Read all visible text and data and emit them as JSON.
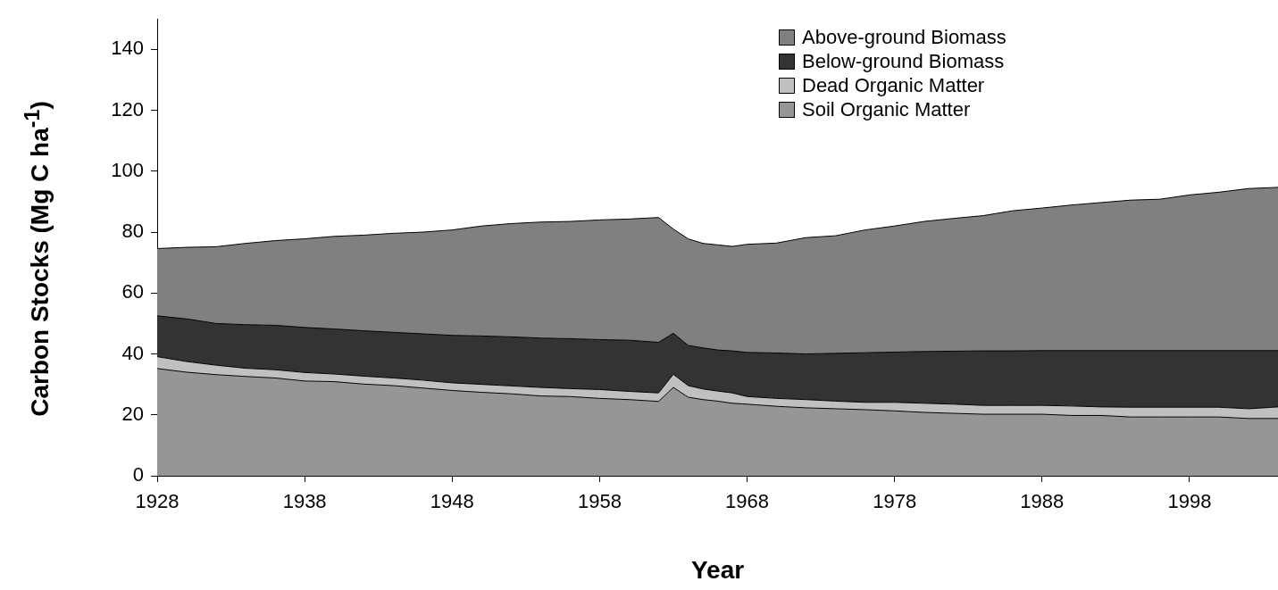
{
  "chart_data": {
    "type": "area",
    "stacked": true,
    "xlabel": "Year",
    "ylabel": "Carbon Stocks (Mg C ha$^{-1}$)",
    "x": [
      1928,
      1930,
      1932,
      1934,
      1936,
      1938,
      1940,
      1942,
      1944,
      1946,
      1948,
      1950,
      1952,
      1954,
      1956,
      1958,
      1960,
      1962,
      1963,
      1964,
      1965,
      1966,
      1967,
      1968,
      1970,
      1972,
      1974,
      1976,
      1978,
      1980,
      1982,
      1984,
      1986,
      1988,
      1990,
      1992,
      1994,
      1996,
      1998,
      2000,
      2002,
      2004
    ],
    "series": [
      {
        "name": "Soil Organic Matter",
        "color": "#969696",
        "values": [
          35.2,
          34.0,
          33.2,
          32.6,
          32.1,
          31.1,
          30.9,
          30.1,
          29.6,
          28.8,
          28.0,
          27.4,
          26.9,
          26.2,
          26.0,
          25.4,
          25.0,
          24.4,
          29.0,
          25.8,
          25.0,
          24.5,
          23.8,
          23.5,
          22.8,
          22.3,
          22.0,
          21.7,
          21.3,
          20.8,
          20.5,
          20.2,
          20.2,
          20.2,
          19.8,
          19.8,
          19.3,
          19.3,
          19.3,
          19.3,
          18.8,
          18.8
        ]
      },
      {
        "name": "Dead Organic Matter",
        "color": "#c0c0c0",
        "values": [
          3.9,
          3.5,
          3.1,
          2.7,
          2.7,
          2.8,
          2.5,
          2.6,
          2.5,
          2.6,
          2.5,
          2.6,
          2.6,
          2.8,
          2.6,
          2.9,
          2.7,
          2.8,
          4.3,
          3.8,
          3.5,
          3.3,
          3.4,
          2.5,
          2.6,
          2.7,
          2.5,
          2.4,
          2.8,
          3.0,
          3.0,
          2.9,
          2.9,
          2.9,
          3.1,
          2.8,
          3.2,
          3.2,
          3.2,
          3.2,
          3.2,
          3.8
        ]
      },
      {
        "name": "Below-ground Biomass",
        "color": "#333333",
        "values": [
          13.4,
          14.0,
          13.7,
          14.3,
          14.6,
          14.8,
          14.8,
          14.9,
          15.0,
          15.2,
          15.6,
          15.9,
          16.1,
          16.2,
          16.4,
          16.4,
          16.8,
          16.6,
          13.5,
          13.2,
          13.5,
          13.5,
          13.8,
          14.5,
          14.9,
          15.0,
          15.7,
          16.3,
          16.5,
          17.0,
          17.4,
          17.9,
          17.9,
          18.0,
          18.2,
          18.5,
          18.6,
          18.6,
          18.6,
          18.6,
          19.1,
          18.5
        ]
      },
      {
        "name": "Above-ground Biomass",
        "color": "#808080",
        "values": [
          22.1,
          23.5,
          25.2,
          26.7,
          27.8,
          29.1,
          30.4,
          31.4,
          32.5,
          33.4,
          34.6,
          36.1,
          37.2,
          38.1,
          38.5,
          39.3,
          39.8,
          41.0,
          34.2,
          35.0,
          34.3,
          34.5,
          34.3,
          35.5,
          36.1,
          38.2,
          38.6,
          40.3,
          41.4,
          42.7,
          43.6,
          44.4,
          46.0,
          46.8,
          47.8,
          48.6,
          49.4,
          49.7,
          51.1,
          52.0,
          53.2,
          53.6
        ]
      }
    ],
    "xlim": [
      1928,
      2004
    ],
    "xticks": [
      1928,
      1938,
      1948,
      1958,
      1968,
      1978,
      1988,
      1998
    ],
    "ylim": [
      0,
      150
    ],
    "yticks": [
      0,
      20,
      40,
      60,
      80,
      100,
      120,
      140
    ],
    "grid": false,
    "legend": "top right"
  }
}
